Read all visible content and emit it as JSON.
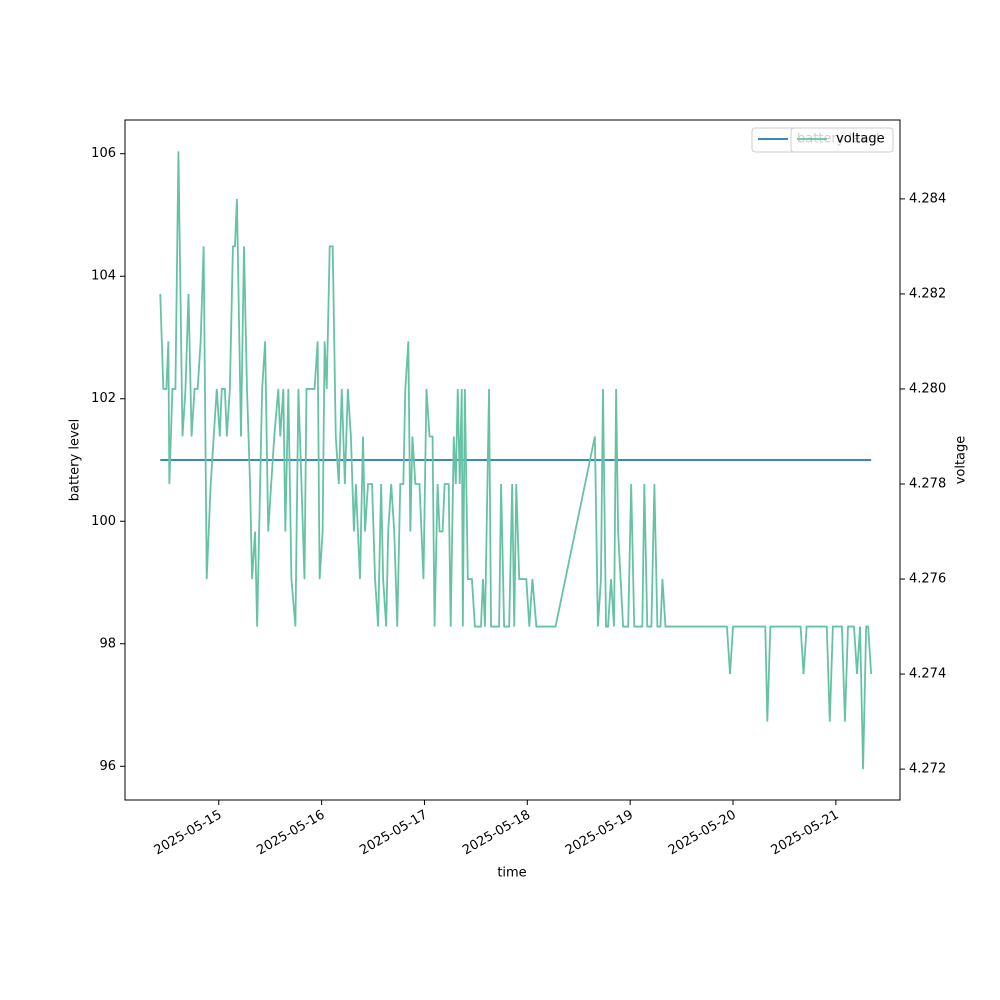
{
  "chart_data": {
    "type": "line",
    "xlabel": "time",
    "ylabel": "battery level",
    "y2label": "voltage",
    "xlim": [
      "2025-05-14T02:07",
      "2025-05-21T14:58"
    ],
    "xticks": [
      "2025-05-15",
      "2025-05-16",
      "2025-05-17",
      "2025-05-18",
      "2025-05-19",
      "2025-05-20",
      "2025-05-21"
    ],
    "ylim": [
      95.45,
      106.55
    ],
    "yticks": [
      96,
      98,
      100,
      102,
      104,
      106
    ],
    "y2lim": [
      4.27135,
      4.28566
    ],
    "y2ticks": [
      4.272,
      4.274,
      4.276,
      4.278,
      {
        "value": 4.28,
        "label": "4.280"
      },
      4.282,
      4.284
    ],
    "legend": "upper right",
    "series": [
      {
        "name": "battery level",
        "color": "#1f77b4",
        "axis": "y",
        "x": [
          "2025-05-14T10:21",
          "2025-05-21T08:14"
        ],
        "values": [
          101,
          101
        ]
      },
      {
        "name": "voltage",
        "color": "#66c2a5",
        "axis": "y2",
        "x": [
          "2025-05-14T10:21",
          "2025-05-14T11:04",
          "2025-05-14T11:46",
          "2025-05-14T12:14",
          "2025-05-14T12:28",
          "2025-05-14T13:11",
          "2025-05-14T13:53",
          "2025-05-14T14:35",
          "2025-05-14T15:32",
          "2025-05-14T16:14",
          "2025-05-14T16:56",
          "2025-05-14T17:39",
          "2025-05-14T18:21",
          "2025-05-14T19:04",
          "2025-05-14T19:46",
          "2025-05-14T20:28",
          "2025-05-14T21:11",
          "2025-05-14T22:07",
          "2025-05-14T22:49",
          "2025-05-14T23:32",
          "2025-05-15T00:14",
          "2025-05-15T00:42",
          "2025-05-15T01:25",
          "2025-05-15T01:53",
          "2025-05-15T02:35",
          "2025-05-15T03:18",
          "2025-05-15T03:46",
          "2025-05-15T04:14",
          "2025-05-15T05:11",
          "2025-05-15T05:53",
          "2025-05-15T06:35",
          "2025-05-15T07:18",
          "2025-05-15T07:46",
          "2025-05-15T08:28",
          "2025-05-15T08:57",
          "2025-05-15T09:39",
          "2025-05-15T10:07",
          "2025-05-15T10:49",
          "2025-05-15T11:32",
          "2025-05-15T12:14",
          "2025-05-15T12:57",
          "2025-05-15T13:53",
          "2025-05-15T14:21",
          "2025-05-15T15:04",
          "2025-05-15T15:32",
          "2025-05-15T16:14",
          "2025-05-15T16:57",
          "2025-05-15T17:53",
          "2025-05-15T18:35",
          "2025-05-15T19:18",
          "2025-05-15T20:00",
          "2025-05-15T20:28",
          "2025-05-15T21:11",
          "2025-05-15T22:21",
          "2025-05-15T23:04",
          "2025-05-15T23:32",
          "2025-05-16T00:14",
          "2025-05-16T00:42",
          "2025-05-16T01:11",
          "2025-05-16T01:53",
          "2025-05-16T02:35",
          "2025-05-16T03:18",
          "2025-05-16T04:00",
          "2025-05-16T04:42",
          "2025-05-16T05:25",
          "2025-05-16T06:07",
          "2025-05-16T06:50",
          "2025-05-16T07:32",
          "2025-05-16T08:00",
          "2025-05-16T08:28",
          "2025-05-16T08:57",
          "2025-05-16T09:39",
          "2025-05-16T10:07",
          "2025-05-16T10:50",
          "2025-05-16T11:46",
          "2025-05-16T12:28",
          "2025-05-16T13:11",
          "2025-05-16T13:53",
          "2025-05-16T14:21",
          "2025-05-16T15:04",
          "2025-05-16T15:32",
          "2025-05-16T16:14",
          "2025-05-16T16:57",
          "2025-05-16T17:39",
          "2025-05-16T18:21",
          "2025-05-16T19:04",
          "2025-05-16T19:32",
          "2025-05-16T20:14",
          "2025-05-16T20:42",
          "2025-05-16T21:11",
          "2025-05-16T21:53",
          "2025-05-16T22:50",
          "2025-05-16T23:46",
          "2025-05-17T00:28",
          "2025-05-17T01:11",
          "2025-05-17T01:53",
          "2025-05-17T02:21",
          "2025-05-17T03:04",
          "2025-05-17T03:32",
          "2025-05-17T04:14",
          "2025-05-17T04:42",
          "2025-05-17T05:39",
          "2025-05-17T06:07",
          "2025-05-17T06:50",
          "2025-05-17T07:18",
          "2025-05-17T07:46",
          "2025-05-17T08:14",
          "2025-05-17T08:42",
          "2025-05-17T08:57",
          "2025-05-17T09:25",
          "2025-05-17T10:07",
          "2025-05-17T11:04",
          "2025-05-17T11:46",
          "2025-05-17T12:28",
          "2025-05-17T13:11",
          "2025-05-17T13:39",
          "2025-05-17T14:07",
          "2025-05-17T15:04",
          "2025-05-17T15:32",
          "2025-05-17T16:28",
          "2025-05-17T17:25",
          "2025-05-17T17:53",
          "2025-05-17T18:35",
          "2025-05-17T19:18",
          "2025-05-17T19:46",
          "2025-05-17T20:28",
          "2025-05-17T20:57",
          "2025-05-17T21:25",
          "2025-05-17T22:07",
          "2025-05-17T23:04",
          "2025-05-17T23:46",
          "2025-05-18T00:28",
          "2025-05-18T01:11",
          "2025-05-18T02:07",
          "2025-05-18T03:04",
          "2025-05-18T04:57",
          "2025-05-18T06:35",
          "2025-05-18T15:46",
          "2025-05-18T16:28",
          "2025-05-18T17:11",
          "2025-05-18T17:39",
          "2025-05-18T18:22",
          "2025-05-18T18:50",
          "2025-05-18T19:32",
          "2025-05-18T20:14",
          "2025-05-18T20:43",
          "2025-05-18T21:11",
          "2025-05-18T22:21",
          "2025-05-18T23:32",
          "2025-05-19T00:14",
          "2025-05-19T00:57",
          "2025-05-19T01:53",
          "2025-05-19T02:50",
          "2025-05-19T03:18",
          "2025-05-19T04:00",
          "2025-05-19T04:57",
          "2025-05-19T05:39",
          "2025-05-19T06:21",
          "2025-05-19T07:04",
          "2025-05-19T07:32",
          "2025-05-19T08:14",
          "2025-05-19T12:43",
          "2025-05-19T17:25",
          "2025-05-19T22:35",
          "2025-05-19T23:18",
          "2025-05-20T00:00",
          "2025-05-20T04:00",
          "2025-05-20T07:32",
          "2025-05-20T08:00",
          "2025-05-20T08:43",
          "2025-05-20T12:14",
          "2025-05-20T15:46",
          "2025-05-20T16:28",
          "2025-05-20T17:11",
          "2025-05-20T19:18",
          "2025-05-20T21:53",
          "2025-05-20T22:35",
          "2025-05-20T23:18",
          "2025-05-21T01:25",
          "2025-05-21T02:07",
          "2025-05-21T02:50",
          "2025-05-21T04:14",
          "2025-05-21T04:56",
          "2025-05-21T05:39",
          "2025-05-21T06:21",
          "2025-05-21T07:04",
          "2025-05-21T07:32",
          "2025-05-21T08:14"
        ],
        "values": [
          4.282,
          4.28,
          4.28,
          4.281,
          4.278,
          4.28,
          4.28,
          4.285,
          4.279,
          4.28,
          4.282,
          4.279,
          4.28,
          4.28,
          4.281,
          4.283,
          4.276,
          4.278,
          4.279,
          4.28,
          4.279,
          4.28,
          4.28,
          4.279,
          4.28,
          4.283,
          4.283,
          4.284,
          4.279,
          4.283,
          4.28,
          4.278,
          4.276,
          4.277,
          4.275,
          4.278,
          4.28,
          4.281,
          4.277,
          4.278,
          4.279,
          4.28,
          4.279,
          4.28,
          4.277,
          4.28,
          4.276,
          4.275,
          4.28,
          4.278,
          4.276,
          4.28,
          4.28,
          4.28,
          4.281,
          4.276,
          4.277,
          4.281,
          4.28,
          4.283,
          4.283,
          4.279,
          4.278,
          4.28,
          4.278,
          4.28,
          4.279,
          4.277,
          4.278,
          4.277,
          4.276,
          4.279,
          4.277,
          4.278,
          4.278,
          4.276,
          4.275,
          4.278,
          4.276,
          4.275,
          4.277,
          4.278,
          4.277,
          4.275,
          4.278,
          4.278,
          4.28,
          4.281,
          4.277,
          4.279,
          4.278,
          4.278,
          4.276,
          4.28,
          4.279,
          4.279,
          4.275,
          4.278,
          4.277,
          4.277,
          4.278,
          4.278,
          4.275,
          4.279,
          4.278,
          4.28,
          4.278,
          4.28,
          4.275,
          4.28,
          4.276,
          4.276,
          4.275,
          4.275,
          4.275,
          4.276,
          4.275,
          4.28,
          4.275,
          4.275,
          4.275,
          4.278,
          4.275,
          4.275,
          4.275,
          4.278,
          4.275,
          4.278,
          4.276,
          4.276,
          4.276,
          4.275,
          4.276,
          4.275,
          4.275,
          4.275,
          4.275,
          4.279,
          4.275,
          4.276,
          4.28,
          4.275,
          4.275,
          4.276,
          4.275,
          4.28,
          4.277,
          4.275,
          4.275,
          4.278,
          4.275,
          4.275,
          4.275,
          4.278,
          4.275,
          4.275,
          4.278,
          4.275,
          4.275,
          4.276,
          4.275,
          4.275,
          4.275,
          4.275,
          4.274,
          4.275,
          4.275,
          4.275,
          4.273,
          4.275,
          4.275,
          4.275,
          4.274,
          4.275,
          4.275,
          4.275,
          4.273,
          4.275,
          4.275,
          4.273,
          4.275,
          4.275,
          4.274,
          4.275,
          4.272,
          4.275,
          4.275,
          4.274
        ]
      }
    ]
  }
}
